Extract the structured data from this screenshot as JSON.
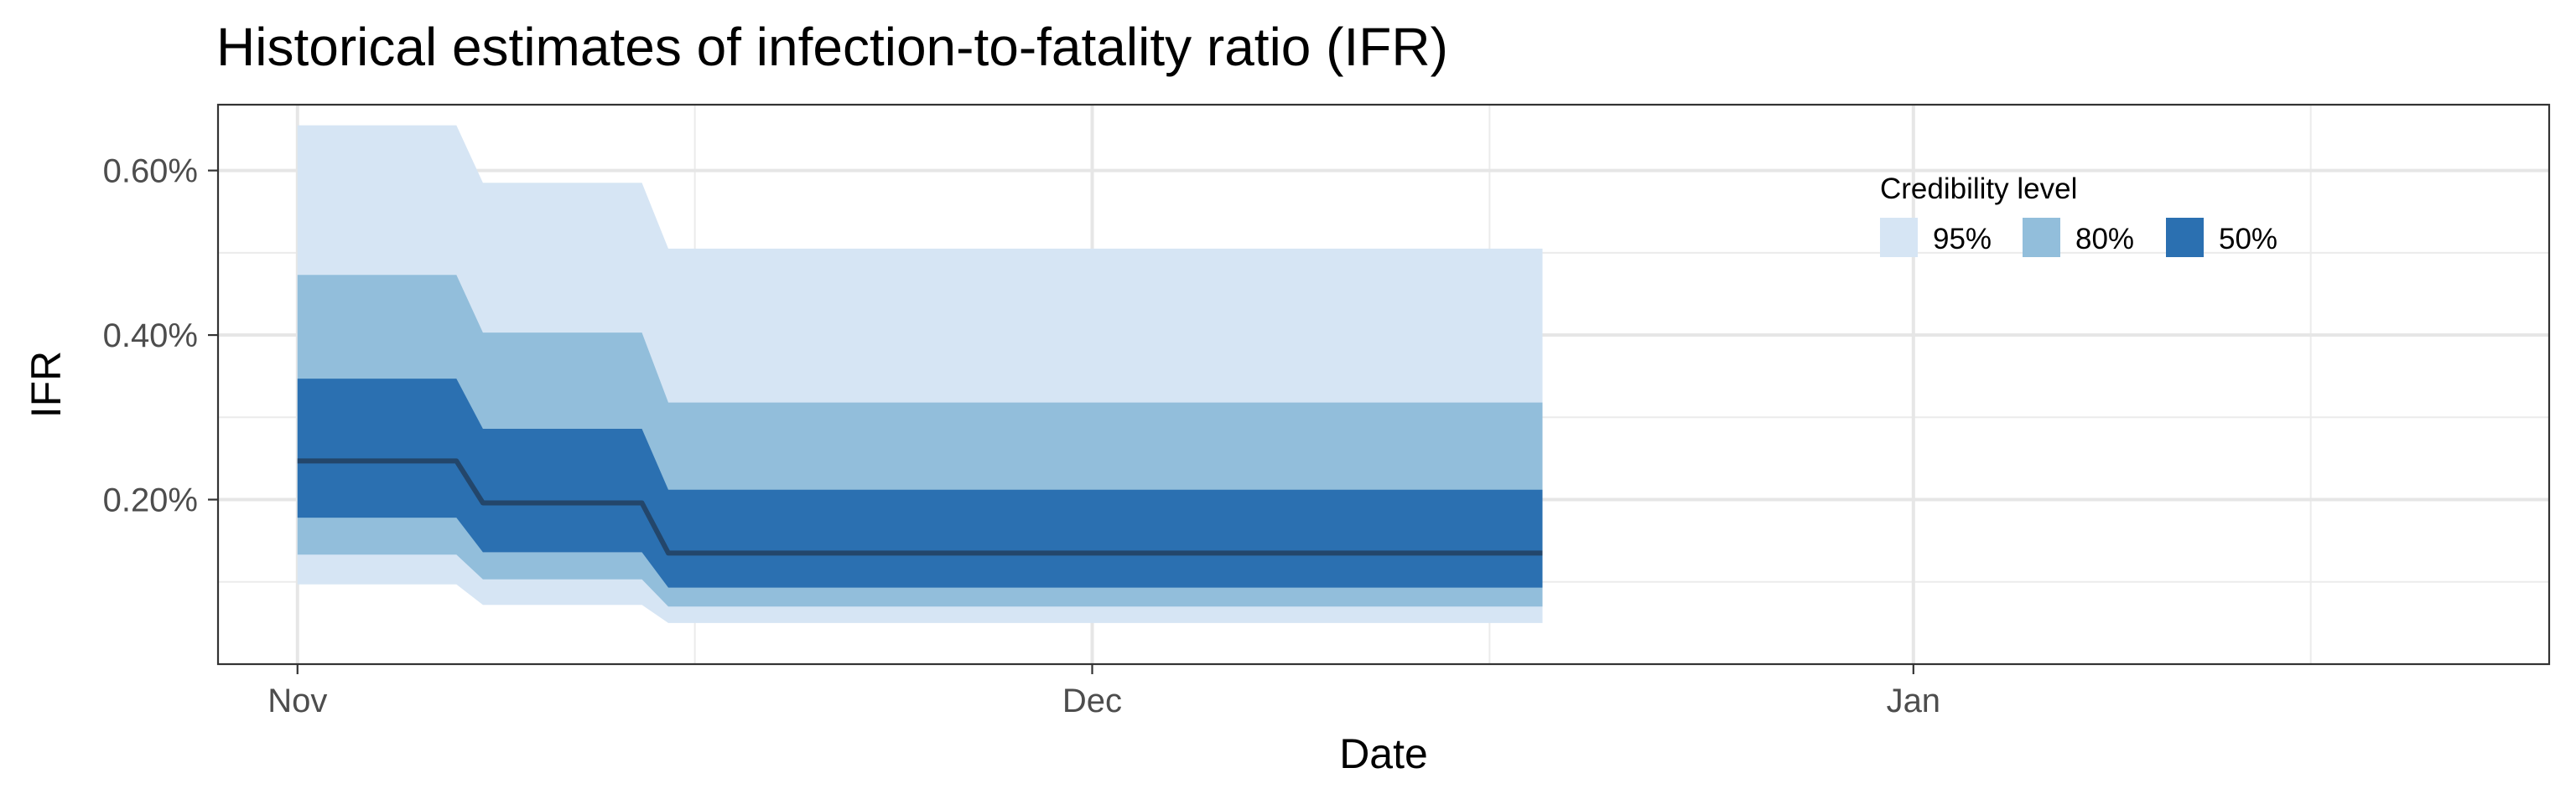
{
  "chart_data": {
    "type": "area",
    "title": "Historical estimates of infection-to-fatality ratio (IFR)",
    "xlabel": "Date",
    "ylabel": "IFR",
    "x_ticks": [
      "Nov",
      "Dec",
      "Jan"
    ],
    "y_ticks": [
      "0.20%",
      "0.40%",
      "0.60%"
    ],
    "y_tick_values": [
      0.2,
      0.4,
      0.6
    ],
    "ylim": [
      0.0,
      0.68
    ],
    "xlim": [
      "2020-10-29",
      "2021-01-25"
    ],
    "grid": true,
    "legend": {
      "title": "Credibility level",
      "position": "top-right",
      "items": [
        {
          "label": "95%",
          "color": "#d6e5f4"
        },
        {
          "label": "80%",
          "color": "#92bedb"
        },
        {
          "label": "50%",
          "color": "#2b70b1"
        }
      ]
    },
    "median_color": "#23466b",
    "dates": [
      "2020-11-01",
      "2020-11-07",
      "2020-11-08",
      "2020-11-14",
      "2020-11-15",
      "2020-12-18"
    ],
    "median": [
      0.247,
      0.247,
      0.196,
      0.196,
      0.135,
      0.135
    ],
    "bands": [
      {
        "level": "95%",
        "lower": [
          0.097,
          0.097,
          0.072,
          0.072,
          0.05,
          0.05
        ],
        "upper": [
          0.655,
          0.655,
          0.585,
          0.585,
          0.505,
          0.505
        ]
      },
      {
        "level": "80%",
        "lower": [
          0.133,
          0.133,
          0.103,
          0.103,
          0.07,
          0.07
        ],
        "upper": [
          0.473,
          0.473,
          0.403,
          0.403,
          0.318,
          0.318
        ]
      },
      {
        "level": "50%",
        "lower": [
          0.178,
          0.178,
          0.136,
          0.136,
          0.093,
          0.093
        ],
        "upper": [
          0.347,
          0.347,
          0.286,
          0.286,
          0.212,
          0.212
        ]
      }
    ]
  }
}
